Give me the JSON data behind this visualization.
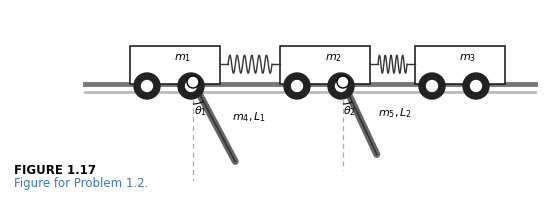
{
  "bg_color": "#ffffff",
  "cart_edge_color": "#222222",
  "cart_fill": "#ffffff",
  "wheel_outer": "#222222",
  "wheel_inner": "#ffffff",
  "spring_color": "#333333",
  "rod_color": "#666666",
  "rod_edge": "#333333",
  "dashed_color": "#aaaaaa",
  "track_color1": "#777777",
  "track_color2": "#bbbbbb",
  "title_text": "FIGURE 1.17",
  "subtitle_text": "Figure for Problem 1.2.",
  "title_color": "#000000",
  "subtitle_color": "#3a7abf",
  "m1_label": "$m_1$",
  "m2_label": "$m_2$",
  "m3_label": "$m_3$",
  "m4_label": "$m_4,L_1$",
  "m5_label": "$m_5,L_2$",
  "theta1_label": "$\\theta_1$",
  "theta2_label": "$\\theta_2$"
}
